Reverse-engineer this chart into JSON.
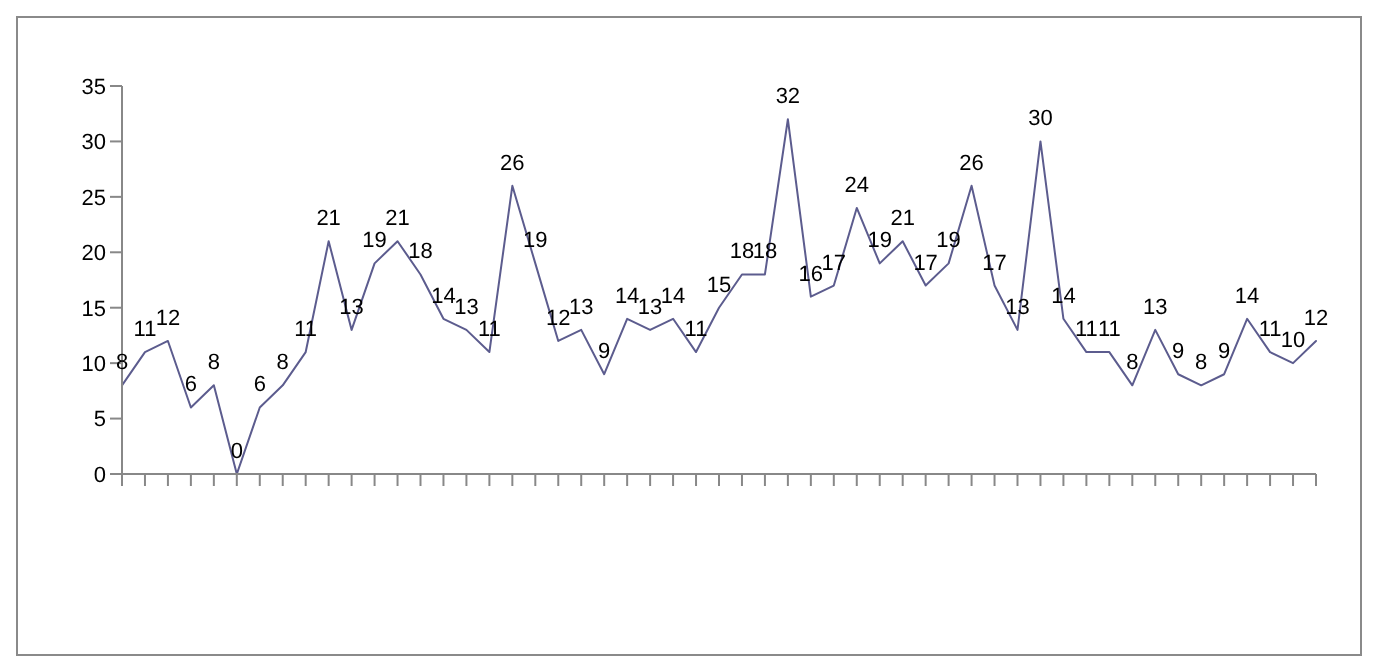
{
  "chart_data": {
    "type": "line",
    "categories": [
      null,
      null,
      null,
      null,
      null,
      null,
      null,
      null,
      null,
      null,
      null,
      null,
      null,
      null,
      null,
      null,
      null,
      null,
      null,
      null,
      null,
      null,
      null,
      null,
      null,
      null,
      null,
      null,
      null,
      null,
      null,
      null,
      null,
      null,
      null,
      null,
      null,
      null,
      null,
      null,
      null,
      null,
      null,
      null,
      null,
      null,
      null,
      null,
      null,
      null,
      null,
      null,
      null
    ],
    "series": [
      {
        "color": "#5c5c8e",
        "values": [
          8,
          11,
          12,
          6,
          8,
          0,
          6,
          8,
          11,
          21,
          13,
          19,
          21,
          18,
          14,
          13,
          11,
          26,
          19,
          12,
          13,
          9,
          14,
          13,
          14,
          11,
          15,
          18,
          18,
          32,
          16,
          17,
          24,
          19,
          21,
          17,
          19,
          26,
          17,
          13,
          30,
          14,
          11,
          11,
          8,
          13,
          9,
          8,
          9,
          14,
          11,
          10,
          12
        ]
      }
    ],
    "ylim": [
      0,
      35
    ],
    "yticks": [
      0,
      5,
      10,
      15,
      20,
      25,
      30,
      35
    ],
    "grid": false,
    "legend": false,
    "data_labels": true,
    "marker": "none",
    "line_style": "solid"
  }
}
